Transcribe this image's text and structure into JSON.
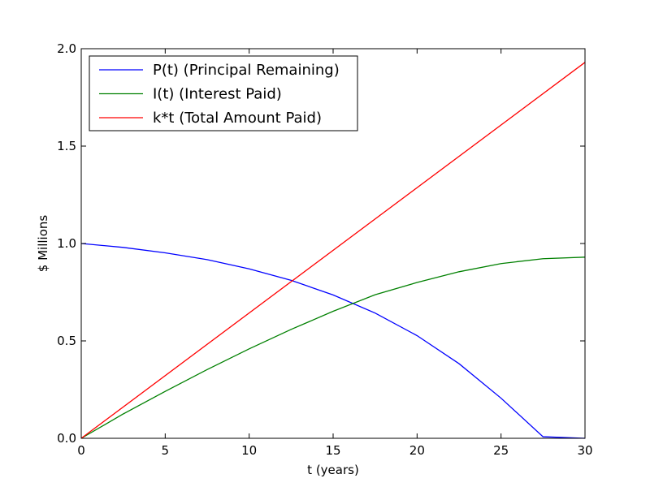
{
  "chart_data": {
    "type": "line",
    "xlabel": "t (years)",
    "ylabel": "$ Millions",
    "xlim": [
      0,
      30
    ],
    "ylim": [
      0,
      2.0
    ],
    "xticks": [
      0,
      5,
      10,
      15,
      20,
      25,
      30
    ],
    "xtick_labels": [
      "0",
      "5",
      "10",
      "15",
      "20",
      "25",
      "30"
    ],
    "yticks": [
      0,
      0.5,
      1.0,
      1.5,
      2.0
    ],
    "ytick_labels": [
      "0.0",
      "0.5",
      "1.0",
      "1.5",
      "2.0"
    ],
    "grid": false,
    "legend_position": "upper-left",
    "series": [
      {
        "name": "P(t) (Principal Remaining)",
        "color": "#0000ff",
        "x": [
          0,
          2.5,
          5,
          7.5,
          10,
          12.5,
          15,
          17.5,
          20,
          22.5,
          25,
          27.5,
          30
        ],
        "values": [
          1.0,
          0.98,
          0.952,
          0.917,
          0.87,
          0.811,
          0.736,
          0.643,
          0.527,
          0.383,
          0.206,
          0.008,
          0.0
        ]
      },
      {
        "name": "I(t) (Interest Paid)",
        "color": "#008000",
        "x": [
          0,
          2.5,
          5,
          7.5,
          10,
          12.5,
          15,
          17.5,
          20,
          22.5,
          25,
          27.5,
          30
        ],
        "values": [
          0.0,
          0.125,
          0.241,
          0.353,
          0.459,
          0.559,
          0.652,
          0.737,
          0.8,
          0.855,
          0.897,
          0.922,
          0.93
        ]
      },
      {
        "name": "k*t (Total Amount Paid)",
        "color": "#ff0000",
        "x": [
          0,
          30
        ],
        "values": [
          0.0,
          1.93
        ]
      }
    ]
  }
}
